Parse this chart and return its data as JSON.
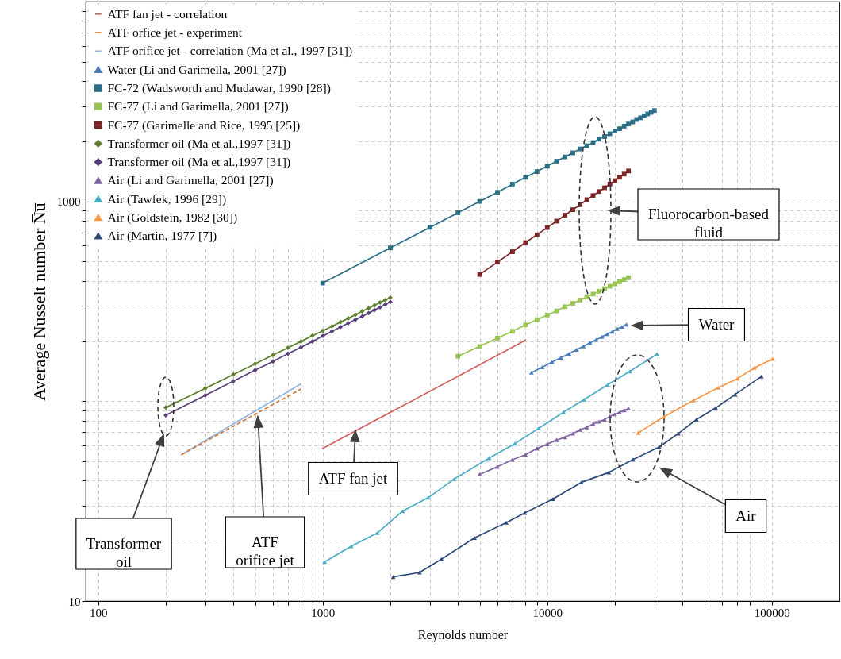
{
  "chart_data": {
    "type": "line",
    "xlabel": "Reynolds number",
    "ylabel": "Average Nusselt number N̅u̅",
    "log": "xy",
    "grid": true,
    "legend": "top left",
    "xlim": [
      88,
      200000
    ],
    "ylim": [
      10,
      10000
    ],
    "xticks": [
      100,
      {
        "value": 200,
        "label": null
      },
      {
        "value": 300,
        "label": null
      },
      {
        "value": 400,
        "label": null
      },
      {
        "value": 500,
        "label": null
      },
      {
        "value": 600,
        "label": null
      },
      {
        "value": 700,
        "label": null
      },
      {
        "value": 800,
        "label": null
      },
      {
        "value": 900,
        "label": null
      },
      1000,
      {
        "value": 2000,
        "label": null
      },
      {
        "value": 3000,
        "label": null
      },
      {
        "value": 4000,
        "label": null
      },
      {
        "value": 5000,
        "label": null
      },
      {
        "value": 6000,
        "label": null
      },
      {
        "value": 7000,
        "label": null
      },
      {
        "value": 8000,
        "label": null
      },
      {
        "value": 9000,
        "label": null
      },
      10000,
      {
        "value": 20000,
        "label": null
      },
      {
        "value": 30000,
        "label": null
      },
      {
        "value": 40000,
        "label": null
      },
      {
        "value": 50000,
        "label": null
      },
      {
        "value": 60000,
        "label": null
      },
      {
        "value": 70000,
        "label": null
      },
      {
        "value": 80000,
        "label": null
      },
      {
        "value": 90000,
        "label": null
      },
      100000
    ],
    "yticks": [
      10,
      {
        "value": 20,
        "label": null
      },
      {
        "value": 30,
        "label": null
      },
      {
        "value": 40,
        "label": null
      },
      {
        "value": 50,
        "label": null
      },
      {
        "value": 60,
        "label": null
      },
      {
        "value": 70,
        "label": null
      },
      {
        "value": 80,
        "label": null
      },
      {
        "value": 90,
        "label": null
      },
      {
        "value": 100,
        "label": null
      },
      {
        "value": 200,
        "label": null
      },
      {
        "value": 300,
        "label": null
      },
      {
        "value": 400,
        "label": null
      },
      {
        "value": 500,
        "label": null
      },
      {
        "value": 600,
        "label": null
      },
      {
        "value": 700,
        "label": null
      },
      {
        "value": 800,
        "label": null
      },
      {
        "value": 900,
        "label": null
      },
      1000,
      {
        "value": 2000,
        "label": null
      },
      {
        "value": 3000,
        "label": null
      },
      {
        "value": 4000,
        "label": null
      },
      {
        "value": 5000,
        "label": null
      },
      {
        "value": 6000,
        "label": null
      },
      {
        "value": 7000,
        "label": null
      },
      {
        "value": 8000,
        "label": null
      },
      {
        "value": 9000,
        "label": null
      }
    ],
    "series": [
      {
        "name": "ATF fan jet - correlation",
        "color": "#d35f5f",
        "marker": "none",
        "x": [
          1000,
          8000
        ],
        "values": [
          58,
          202
        ]
      },
      {
        "name": "ATF orfice jet - experiment",
        "color": "#d8782f",
        "marker": "none",
        "line_style": "dashed",
        "x": [
          235,
          800
        ],
        "values": [
          54,
          115
        ]
      },
      {
        "name": "ATF orifice jet - correlation (Ma et al., 1997 [31])",
        "color": "#8fb4e3",
        "marker": "none",
        "x": [
          235,
          800
        ],
        "values": [
          54,
          122
        ]
      },
      {
        "name": "Water (Li and Garimella, 2001 [27])",
        "color": "#4a7ebb",
        "marker": "triangle",
        "x": [
          8500,
          9500,
          10500,
          11500,
          12500,
          13500,
          14500,
          15500,
          16500,
          17500,
          18500,
          19500,
          20500,
          21500,
          22500
        ],
        "values": [
          139,
          148,
          157,
          165,
          173,
          181,
          188,
          196,
          203,
          210,
          217,
          223,
          230,
          236,
          242
        ]
      },
      {
        "name": "FC-72 (Wadsworth and Mudawar, 1990 [28])",
        "color": "#2a6f86",
        "marker": "square",
        "x": [
          1000,
          2000,
          3000,
          4000,
          5000,
          6000,
          7000,
          8000,
          9000,
          10000,
          11000,
          12000,
          13000,
          14000,
          15000,
          16000,
          17000,
          18000,
          19000,
          20000,
          21000,
          22000,
          23000,
          24000,
          25000,
          26000,
          27000,
          28000,
          29000,
          30000
        ],
        "values": [
          390,
          585,
          741,
          877,
          1000,
          1110,
          1220,
          1320,
          1410,
          1500,
          1590,
          1670,
          1750,
          1830,
          1900,
          1970,
          2050,
          2110,
          2180,
          2250,
          2310,
          2380,
          2440,
          2500,
          2570,
          2620,
          2680,
          2740,
          2790,
          2850
        ]
      },
      {
        "name": "FC-77 (Li and Garimella, 2001 [27])",
        "color": "#98c454",
        "marker": "square",
        "x": [
          4000,
          5000,
          6000,
          7000,
          8000,
          9000,
          10000,
          11000,
          12000,
          13000,
          14000,
          15000,
          16000,
          17000,
          18000,
          19000,
          20000,
          21000,
          22000,
          23000
        ],
        "values": [
          168,
          188,
          207,
          224,
          241,
          256,
          270,
          283,
          297,
          309,
          321,
          333,
          344,
          355,
          366,
          376,
          386,
          396,
          406,
          415
        ]
      },
      {
        "name": "FC-77 (Garimelle and Rice, 1995 [25])",
        "color": "#7b2626",
        "marker": "square",
        "x": [
          5000,
          6000,
          7000,
          8000,
          9000,
          10000,
          11000,
          12000,
          13000,
          14000,
          15000,
          16000,
          17000,
          18000,
          19000,
          20000,
          21000,
          22000,
          23000
        ],
        "values": [
          431,
          497,
          560,
          622,
          681,
          740,
          797,
          853,
          909,
          963,
          1020,
          1070,
          1120,
          1170,
          1220,
          1270,
          1320,
          1370,
          1420
        ]
      },
      {
        "name": "Transformer oil (Ma et al.,1997 [31])",
        "color": "#5f7f2f",
        "marker": "diamond",
        "x": [
          200,
          300,
          400,
          500,
          600,
          700,
          800,
          900,
          1000,
          1100,
          1200,
          1300,
          1400,
          1500,
          1600,
          1700,
          1800,
          1900,
          2000
        ],
        "values": [
          93,
          116,
          136,
          154,
          170,
          185,
          199,
          213,
          225,
          237,
          249,
          260,
          271,
          282,
          292,
          302,
          312,
          321,
          330
        ]
      },
      {
        "name": "Transformer oil (Ma et al.,1997 [31])",
        "color": "#5b3f7a",
        "marker": "diamond",
        "x": [
          200,
          300,
          400,
          500,
          600,
          700,
          800,
          900,
          1000,
          1100,
          1200,
          1300,
          1400,
          1500,
          1600,
          1700,
          1800,
          1900,
          2000
        ],
        "values": [
          85,
          107,
          126,
          143,
          158,
          173,
          186,
          199,
          212,
          224,
          235,
          246,
          256,
          266,
          276,
          286,
          295,
          305,
          314
        ]
      },
      {
        "name": "Air (Li and Garimella, 2001 [27])",
        "color": "#8064a2",
        "marker": "triangle",
        "x": [
          5000,
          6000,
          7000,
          8000,
          9000,
          10000,
          11000,
          12000,
          13000,
          14000,
          15000,
          16000,
          17000,
          18000,
          19000,
          20000,
          21000,
          22000,
          23000
        ],
        "values": [
          43,
          47,
          51,
          54,
          58,
          61,
          64,
          66,
          69,
          72,
          74,
          77,
          79,
          81,
          84,
          86,
          88,
          90,
          92
        ]
      },
      {
        "name": "Air (Tawfek, 1996 [29])",
        "color": "#4bacc6",
        "marker": "triangle",
        "x": [
          1020,
          1340,
          1750,
          2270,
          2950,
          3840,
          5510,
          7180,
          9160,
          11800,
          14600,
          18600,
          23300,
          30800
        ],
        "values": [
          15.7,
          18.8,
          21.9,
          28.2,
          32.9,
          40.7,
          51.9,
          61.4,
          73.1,
          88.1,
          102,
          121,
          141,
          172
        ]
      },
      {
        "name": "Air (Goldstein, 1982 [30])",
        "color": "#f79646",
        "marker": "triangle",
        "x": [
          25400,
          33000,
          44800,
          57800,
          70500,
          83600,
          101000
        ],
        "values": [
          69.5,
          83.5,
          101,
          117,
          130,
          147,
          163
        ]
      },
      {
        "name": "Air (Martin, 1977 [7])",
        "color": "#2e4a7a",
        "marker": "triangle",
        "x": [
          2060,
          2700,
          3380,
          4740,
          6570,
          7940,
          10600,
          14200,
          18800,
          24100,
          31500,
          38300,
          46200,
          56200,
          68600,
          89900
        ],
        "values": [
          13.2,
          13.9,
          16.2,
          20.7,
          24.7,
          27.6,
          32.4,
          39.3,
          44.0,
          51.1,
          59.0,
          68.9,
          81.1,
          92.5,
          108,
          133
        ]
      }
    ],
    "annotations": [
      "Fluorocarbon-based fluid",
      "Water",
      "ATF fan jet",
      "Air",
      "Transformer oil",
      "ATF orifice jet"
    ]
  }
}
